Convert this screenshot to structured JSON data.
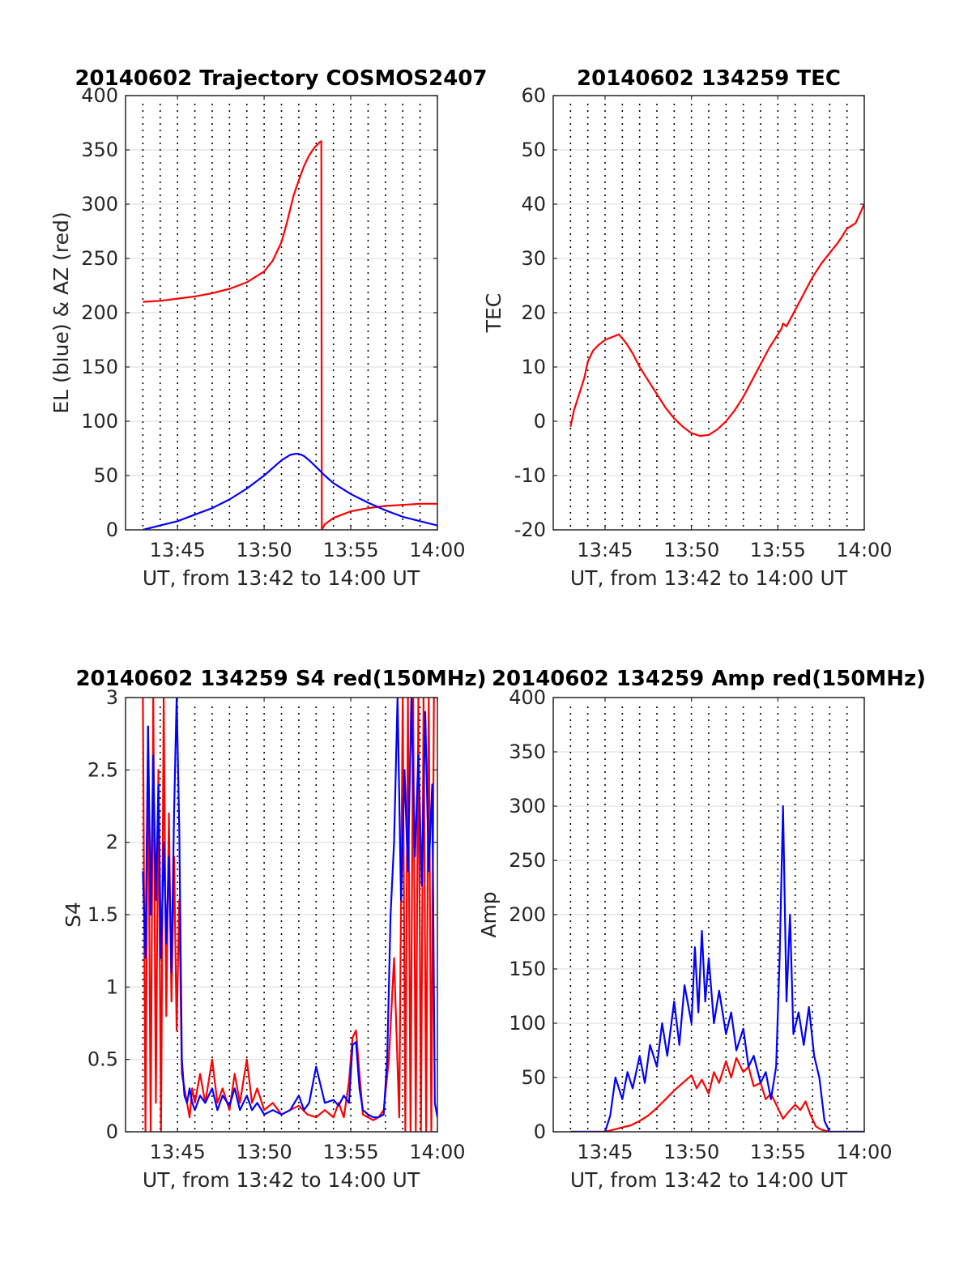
{
  "chart_data": [
    {
      "type": "line",
      "title": "20140602 Trajectory COSMOS2407",
      "xlabel": "UT, from 13:42 to 14:00 UT",
      "ylabel": "EL (blue) & AZ (red)",
      "x_tick_labels": [
        "13:45",
        "13:50",
        "13:55",
        "14:00"
      ],
      "x_ticks_min": [
        765,
        770,
        775,
        780
      ],
      "xlim_min": [
        762,
        780
      ],
      "y_tick_labels": [
        "0",
        "50",
        "100",
        "150",
        "200",
        "250",
        "300",
        "350",
        "400"
      ],
      "y_ticks": [
        0,
        50,
        100,
        150,
        200,
        250,
        300,
        350,
        400
      ],
      "ylim": [
        0,
        400
      ],
      "grid": "on",
      "series": [
        {
          "color": "#ff0000",
          "x_min": [
            763.0,
            764.0,
            765.0,
            766.0,
            767.0,
            768.0,
            769.0,
            770.0,
            770.5,
            771.0,
            771.3,
            771.7,
            772.0,
            772.3,
            772.6,
            772.9,
            773.2,
            773.3,
            773.33,
            773.5,
            774.0,
            775.0,
            776.0,
            777.0,
            778.0,
            779.0,
            780.0
          ],
          "y": [
            210,
            211,
            213,
            215,
            218,
            222,
            228,
            238,
            248,
            265,
            282,
            308,
            322,
            335,
            345,
            352,
            357,
            358,
            0,
            5,
            11,
            17,
            20,
            22,
            23,
            24,
            24
          ]
        },
        {
          "color": "#0000ff",
          "x_min": [
            763.0,
            764.0,
            765.0,
            766.0,
            767.0,
            768.0,
            769.0,
            770.0,
            770.5,
            771.0,
            771.5,
            771.8,
            772.0,
            772.3,
            772.6,
            773.0,
            773.5,
            774.0,
            775.0,
            776.0,
            777.0,
            778.0,
            779.0,
            780.0
          ],
          "y": [
            0,
            4,
            8,
            14,
            20,
            28,
            38,
            50,
            57,
            64,
            69,
            70,
            70,
            68,
            64,
            58,
            50,
            43,
            33,
            25,
            18,
            12,
            8,
            4
          ]
        }
      ]
    },
    {
      "type": "line",
      "title": "20140602 134259 TEC",
      "xlabel": "UT, from 13:42 to 14:00 UT",
      "ylabel": "TEC",
      "x_tick_labels": [
        "13:45",
        "13:50",
        "13:55",
        "14:00"
      ],
      "x_ticks_min": [
        765,
        770,
        775,
        780
      ],
      "xlim_min": [
        762,
        780
      ],
      "y_tick_labels": [
        "-20",
        "-10",
        "0",
        "10",
        "20",
        "30",
        "40",
        "50",
        "60"
      ],
      "y_ticks": [
        -20,
        -10,
        0,
        10,
        20,
        30,
        40,
        50,
        60
      ],
      "ylim": [
        -20,
        60
      ],
      "grid": "on",
      "series": [
        {
          "color": "#ff0000",
          "x_min": [
            763.0,
            763.2,
            763.5,
            763.8,
            764.0,
            764.3,
            764.6,
            765.0,
            765.4,
            765.8,
            766.2,
            766.6,
            767.0,
            767.5,
            768.0,
            768.5,
            769.0,
            769.5,
            770.0,
            770.5,
            771.0,
            771.5,
            772.0,
            772.5,
            773.0,
            773.5,
            774.0,
            774.5,
            775.0,
            775.2,
            775.3,
            775.5,
            776.0,
            776.5,
            777.0,
            777.5,
            778.0,
            778.5,
            779.0,
            779.5,
            780.0
          ],
          "y": [
            -1,
            2,
            5,
            8,
            11,
            13,
            14,
            15,
            15.5,
            16,
            14.5,
            12.5,
            10,
            7.5,
            5,
            2.5,
            0.5,
            -1,
            -2.2,
            -2.7,
            -2.5,
            -1.5,
            0,
            2,
            4.5,
            7.5,
            10.5,
            13.5,
            16,
            17,
            18,
            17.5,
            20.5,
            23.5,
            26.5,
            29,
            31,
            33,
            35.5,
            36.5,
            40
          ]
        }
      ]
    },
    {
      "type": "line",
      "title": "20140602 134259 S4 red(150MHz)",
      "xlabel": "UT, from 13:42 to 14:00 UT",
      "ylabel": "S4",
      "x_tick_labels": [
        "13:45",
        "13:50",
        "13:55",
        "14:00"
      ],
      "x_ticks_min": [
        765,
        770,
        775,
        780
      ],
      "xlim_min": [
        762,
        780
      ],
      "y_tick_labels": [
        "0",
        "0.5",
        "1",
        "1.5",
        "2",
        "2.5",
        "3"
      ],
      "y_ticks": [
        0,
        0.5,
        1,
        1.5,
        2,
        2.5,
        3
      ],
      "ylim": [
        0,
        3
      ],
      "grid": "on",
      "series": [
        {
          "color": "#ff0000",
          "x_min": [
            763.0,
            763.15,
            763.3,
            763.45,
            763.6,
            763.75,
            763.9,
            764.05,
            764.2,
            764.35,
            764.5,
            764.65,
            764.8,
            764.95,
            765.1,
            765.25,
            765.4,
            765.55,
            765.7,
            765.85,
            766.0,
            766.3,
            766.6,
            767.0,
            767.3,
            767.6,
            768.0,
            768.3,
            768.6,
            769.0,
            769.3,
            769.6,
            770.0,
            770.5,
            771.0,
            771.5,
            772.0,
            772.5,
            773.0,
            773.5,
            774.0,
            774.3,
            774.6,
            774.9,
            775.1,
            775.3,
            775.5,
            775.7,
            776.0,
            776.3,
            776.6,
            776.9,
            777.2,
            777.5,
            777.8,
            778.0,
            778.15,
            778.3,
            778.45,
            778.6,
            778.75,
            778.9,
            779.05,
            779.2,
            779.35,
            779.5,
            779.65,
            779.8,
            780.0
          ],
          "y": [
            3,
            0,
            2.8,
            0,
            3,
            0.2,
            2.5,
            0,
            3,
            0.8,
            2.2,
            0.9,
            1.9,
            0.7,
            1.6,
            0.4,
            0.3,
            0.2,
            0.1,
            0.3,
            0.2,
            0.4,
            0.2,
            0.5,
            0.2,
            0.3,
            0.15,
            0.4,
            0.2,
            0.5,
            0.2,
            0.3,
            0.15,
            0.2,
            0.12,
            0.15,
            0.18,
            0.12,
            0.1,
            0.15,
            0.1,
            0.2,
            0.1,
            0.35,
            0.65,
            0.7,
            0.4,
            0.12,
            0.1,
            0.08,
            0.1,
            0.15,
            0.5,
            1.2,
            0.1,
            3,
            0,
            3,
            0,
            3,
            0,
            3,
            0,
            3,
            0,
            3,
            0,
            3,
            3
          ]
        },
        {
          "color": "#0000ff",
          "x_min": [
            763.0,
            763.15,
            763.3,
            763.45,
            763.6,
            763.75,
            763.9,
            764.05,
            764.2,
            764.35,
            764.5,
            764.65,
            764.8,
            764.95,
            765.1,
            765.25,
            765.4,
            765.55,
            765.7,
            765.85,
            766.0,
            766.3,
            766.6,
            767.0,
            767.3,
            767.6,
            768.0,
            768.3,
            768.6,
            769.0,
            769.3,
            769.6,
            770.0,
            770.5,
            771.0,
            771.5,
            772.0,
            772.3,
            772.6,
            773.0,
            773.5,
            774.0,
            774.3,
            774.6,
            774.9,
            775.1,
            775.3,
            775.5,
            775.7,
            776.0,
            776.3,
            776.6,
            776.9,
            777.1,
            777.3,
            777.5,
            777.7,
            777.9,
            778.1,
            778.3,
            778.5,
            778.7,
            778.9,
            779.1,
            779.3,
            779.5,
            779.7,
            779.85,
            780.0
          ],
          "y": [
            1.8,
            1.2,
            2.8,
            1.5,
            2.6,
            1.6,
            2.4,
            1.2,
            2.0,
            1.3,
            1.9,
            1.1,
            2.2,
            3.0,
            2.1,
            0.5,
            0.25,
            0.2,
            0.3,
            0.2,
            0.15,
            0.25,
            0.2,
            0.3,
            0.15,
            0.25,
            0.18,
            0.3,
            0.15,
            0.25,
            0.15,
            0.2,
            0.12,
            0.15,
            0.12,
            0.15,
            0.25,
            0.15,
            0.2,
            0.45,
            0.2,
            0.22,
            0.18,
            0.25,
            0.2,
            0.6,
            0.62,
            0.3,
            0.15,
            0.12,
            0.1,
            0.1,
            0.12,
            0.5,
            1.5,
            2.0,
            3.0,
            1.6,
            2.5,
            1.8,
            3.0,
            1.9,
            2.6,
            1.7,
            2.9,
            1.8,
            2.4,
            0.2,
            0.1
          ]
        }
      ]
    },
    {
      "type": "line",
      "title": "20140602 134259 Amp red(150MHz)",
      "xlabel": "UT, from 13:42 to 14:00 UT",
      "ylabel": "Amp",
      "x_tick_labels": [
        "13:45",
        "13:50",
        "13:55",
        "14:00"
      ],
      "x_ticks_min": [
        765,
        770,
        775,
        780
      ],
      "xlim_min": [
        762,
        780
      ],
      "y_tick_labels": [
        "0",
        "50",
        "100",
        "150",
        "200",
        "250",
        "300",
        "350",
        "400"
      ],
      "y_ticks": [
        0,
        50,
        100,
        150,
        200,
        250,
        300,
        350,
        400
      ],
      "ylim": [
        0,
        400
      ],
      "grid": "on",
      "series": [
        {
          "color": "#ff0000",
          "x_min": [
            763.0,
            764.0,
            765.0,
            765.5,
            766.0,
            766.5,
            767.0,
            767.5,
            768.0,
            768.5,
            769.0,
            769.5,
            770.0,
            770.3,
            770.6,
            771.0,
            771.3,
            771.6,
            772.0,
            772.3,
            772.6,
            773.0,
            773.3,
            773.6,
            774.0,
            774.3,
            774.6,
            775.0,
            775.3,
            775.6,
            776.0,
            776.3,
            776.6,
            776.9,
            777.2,
            777.5,
            778.0,
            779.0,
            780.0
          ],
          "y": [
            0,
            0,
            0,
            2,
            4,
            6,
            10,
            15,
            22,
            30,
            38,
            45,
            52,
            40,
            48,
            35,
            55,
            45,
            65,
            50,
            68,
            55,
            60,
            42,
            45,
            30,
            35,
            22,
            12,
            18,
            25,
            20,
            28,
            15,
            5,
            2,
            0,
            0,
            0
          ]
        },
        {
          "color": "#0000ff",
          "x_min": [
            763.0,
            764.0,
            765.0,
            765.3,
            765.6,
            766.0,
            766.3,
            766.6,
            767.0,
            767.3,
            767.6,
            768.0,
            768.3,
            768.6,
            769.0,
            769.3,
            769.6,
            770.0,
            770.2,
            770.4,
            770.6,
            770.8,
            771.0,
            771.3,
            771.6,
            772.0,
            772.3,
            772.6,
            773.0,
            773.3,
            773.6,
            774.0,
            774.3,
            774.6,
            774.9,
            775.1,
            775.3,
            775.5,
            775.7,
            775.9,
            776.2,
            776.5,
            776.8,
            777.1,
            777.4,
            777.7,
            778.0,
            779.0,
            780.0
          ],
          "y": [
            0,
            0,
            0,
            15,
            50,
            30,
            55,
            40,
            70,
            45,
            80,
            60,
            100,
            70,
            120,
            80,
            135,
            100,
            170,
            110,
            185,
            120,
            160,
            100,
            130,
            90,
            110,
            75,
            95,
            60,
            70,
            45,
            55,
            30,
            60,
            160,
            300,
            120,
            200,
            90,
            110,
            80,
            115,
            70,
            50,
            10,
            0,
            0,
            0
          ]
        }
      ]
    }
  ]
}
